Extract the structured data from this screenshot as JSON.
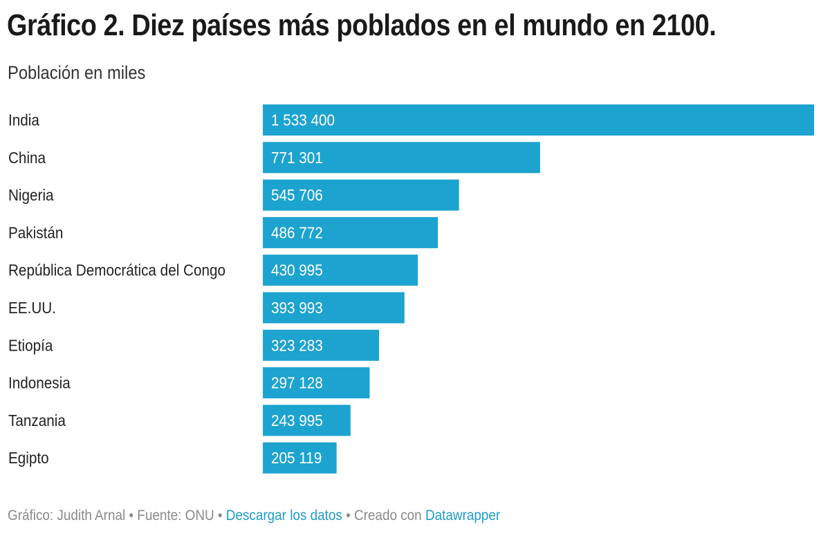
{
  "header": {
    "title": "Gráfico 2. Diez países más poblados en el mundo en 2100.",
    "subtitle": "Población en miles"
  },
  "footer": {
    "prefix": "Gráfico: Judith Arnal • Fuente: ONU • ",
    "download_link": "Descargar los datos",
    "middle": " • Creado con ",
    "tool_link": "Datawrapper"
  },
  "colors": {
    "bar": "#1da3cf",
    "bar_label": "#ffffff",
    "category_label": "#222222"
  },
  "chart_data": {
    "type": "bar",
    "orientation": "horizontal",
    "title": "Gráfico 2. Diez países más poblados en el mundo en 2100.",
    "subtitle": "Población en miles",
    "categories": [
      "India",
      "China",
      "Nigeria",
      "Pakistán",
      "República Democrática del Congo",
      "EE.UU.",
      "Etiopía",
      "Indonesia",
      "Tanzania",
      "Egipto"
    ],
    "values": [
      1533400,
      771301,
      545706,
      486772,
      430995,
      393993,
      323283,
      297128,
      243995,
      205119
    ],
    "value_labels": [
      "1 533 400",
      "771 301",
      "545 706",
      "486 772",
      "430 995",
      "393 993",
      "323 283",
      "297 128",
      "243 995",
      "205 119"
    ],
    "xlim": [
      0,
      1533400
    ],
    "grid": false,
    "legend": "none"
  }
}
